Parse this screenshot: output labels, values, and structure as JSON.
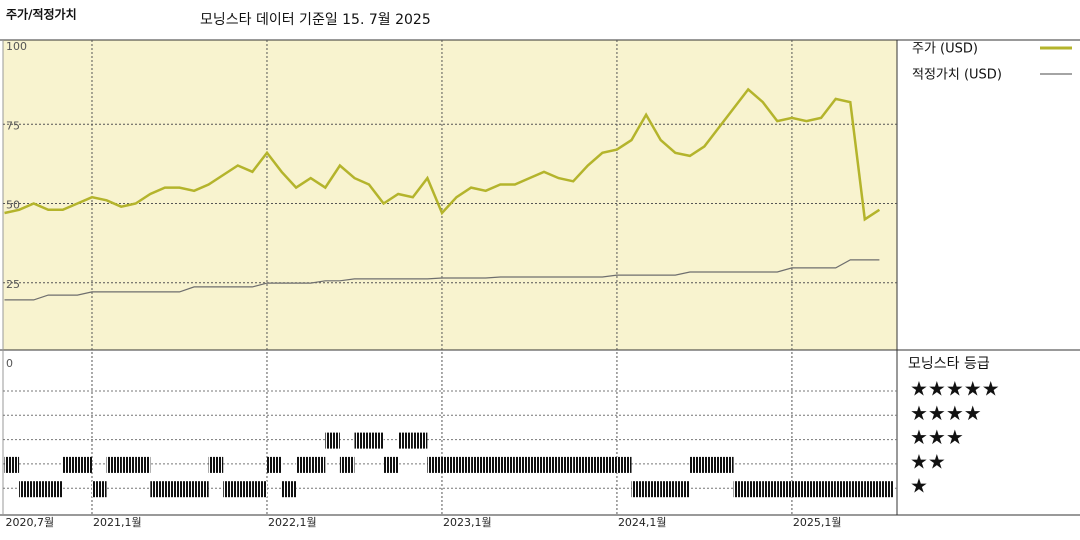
{
  "chart_data": {
    "type": "line",
    "title": "주가/적정가치",
    "subtitle": "모닝스타 데이터 기준일 15. 7월 2025",
    "x": [
      "2020-07",
      "2020-08",
      "2020-09",
      "2020-10",
      "2020-11",
      "2020-12",
      "2021-01",
      "2021-02",
      "2021-03",
      "2021-04",
      "2021-05",
      "2021-06",
      "2021-07",
      "2021-08",
      "2021-09",
      "2021-10",
      "2021-11",
      "2021-12",
      "2022-01",
      "2022-02",
      "2022-03",
      "2022-04",
      "2022-05",
      "2022-06",
      "2022-07",
      "2022-08",
      "2022-09",
      "2022-10",
      "2022-11",
      "2022-12",
      "2023-01",
      "2023-02",
      "2023-03",
      "2023-04",
      "2023-05",
      "2023-06",
      "2023-07",
      "2023-08",
      "2023-09",
      "2023-10",
      "2023-11",
      "2023-12",
      "2024-01",
      "2024-02",
      "2024-03",
      "2024-04",
      "2024-05",
      "2024-06",
      "2024-07",
      "2024-08",
      "2024-09",
      "2024-10",
      "2024-11",
      "2024-12",
      "2025-01",
      "2025-02",
      "2025-03",
      "2025-04",
      "2025-05",
      "2025-06",
      "2025-07"
    ],
    "series": [
      {
        "name": "주가 (USD)",
        "color": "#b4b42c",
        "values": [
          47,
          48,
          50,
          48,
          48,
          50,
          52,
          51,
          49,
          50,
          53,
          55,
          55,
          54,
          56,
          59,
          62,
          60,
          66,
          60,
          55,
          58,
          55,
          62,
          58,
          56,
          50,
          53,
          52,
          58,
          47,
          52,
          55,
          54,
          56,
          56,
          58,
          60,
          58,
          57,
          62,
          66,
          67,
          70,
          78,
          70,
          66,
          65,
          68,
          74,
          80,
          86,
          82,
          76,
          77,
          76,
          77,
          83,
          82,
          45,
          48
        ]
      },
      {
        "name": "적정가치 (USD)",
        "color": "#6e6e6e",
        "values": [
          19.6,
          19.6,
          19.6,
          21.1,
          21.1,
          21.1,
          22.1,
          22.1,
          22.1,
          22.1,
          22.1,
          22.1,
          22.1,
          23.7,
          23.7,
          23.7,
          23.7,
          23.7,
          24.9,
          24.9,
          24.9,
          24.9,
          25.6,
          25.6,
          26.2,
          26.2,
          26.2,
          26.2,
          26.2,
          26.2,
          26.5,
          26.5,
          26.5,
          26.5,
          26.8,
          26.8,
          26.8,
          26.8,
          26.8,
          26.8,
          26.8,
          26.8,
          27.4,
          27.4,
          27.4,
          27.4,
          27.4,
          28.4,
          28.4,
          28.4,
          28.4,
          28.4,
          28.4,
          28.4,
          29.7,
          29.7,
          29.7,
          29.7,
          32.2,
          32.2,
          32.2
        ]
      }
    ],
    "xlim": [
      "2020-07",
      "2025-08"
    ],
    "xticks": [
      {
        "value": "2020-07",
        "label": "2020,7월"
      },
      {
        "value": "2021-01",
        "label": "2021,1월"
      },
      {
        "value": "2022-01",
        "label": "2022,1월"
      },
      {
        "value": "2023-01",
        "label": "2023,1월"
      },
      {
        "value": "2024-01",
        "label": "2024,1월"
      },
      {
        "value": "2025-01",
        "label": "2025,1월"
      }
    ],
    "ylim": [
      0,
      100
    ],
    "yticks": [
      0,
      25,
      50,
      75,
      100
    ],
    "grid": true,
    "rating": {
      "title": "모닝스타 등급",
      "levels": [
        "★★★★★",
        "★★★★",
        "★★★",
        "★★",
        "★"
      ],
      "values": [
        2,
        1,
        1,
        1,
        2,
        2,
        1,
        2,
        2,
        2,
        1,
        1,
        1,
        1,
        2,
        1,
        1,
        1,
        2,
        1,
        2,
        2,
        3,
        2,
        3,
        3,
        2,
        3,
        3,
        2,
        2,
        2,
        2,
        2,
        2,
        2,
        2,
        2,
        2,
        2,
        2,
        2,
        2,
        1,
        1,
        1,
        1,
        2,
        2,
        2,
        1,
        1,
        1,
        1,
        1,
        1,
        1,
        1,
        1,
        1,
        1
      ]
    }
  }
}
